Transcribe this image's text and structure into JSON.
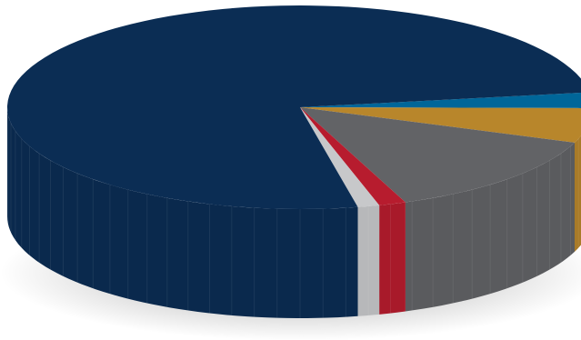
{
  "chart_data": {
    "type": "pie",
    "style": "3d",
    "title": "",
    "slices": [
      {
        "value": 2.5,
        "color": "#006699"
      },
      {
        "value": 5.5,
        "color": "#B8862B"
      },
      {
        "value": 13.5,
        "color": "#626366"
      },
      {
        "value": 1.5,
        "color": "#B71C2E"
      },
      {
        "value": 1.2,
        "color": "#C7C8CA"
      },
      {
        "value": 75.8,
        "color": "#0B2D54"
      }
    ],
    "legend": false,
    "data_labels": false
  }
}
